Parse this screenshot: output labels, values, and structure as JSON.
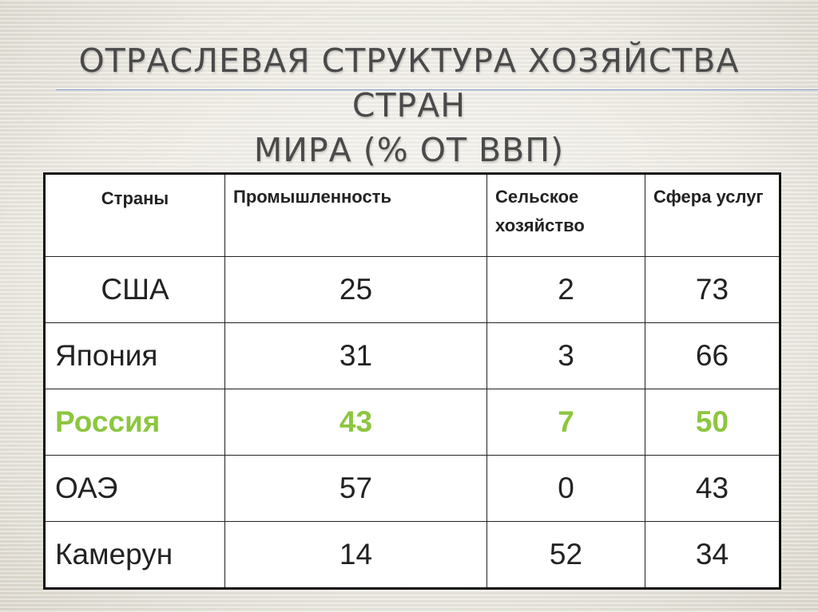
{
  "slide": {
    "title_line1": "ОТРАСЛЕВАЯ СТРУКТУРА ХОЗЯЙСТВА СТРАН",
    "title_line2": "МИРА (% ОТ ВВП)"
  },
  "table": {
    "headers": [
      "Страны",
      "Промышленность",
      "Сельское хозяйство",
      "Сфера услуг"
    ],
    "rows": [
      {
        "country": "США",
        "industry": "25",
        "agriculture": "2",
        "services": "73"
      },
      {
        "country": "Япония",
        "industry": "31",
        "agriculture": "3",
        "services": "66"
      },
      {
        "country": "Россия",
        "industry": "43",
        "agriculture": "7",
        "services": "50"
      },
      {
        "country": "ОАЭ",
        "industry": "57",
        "agriculture": "0",
        "services": "43"
      },
      {
        "country": "Камерун",
        "industry": "14",
        "agriculture": "52",
        "services": "34"
      }
    ],
    "highlight_color": "#8cc63f"
  }
}
